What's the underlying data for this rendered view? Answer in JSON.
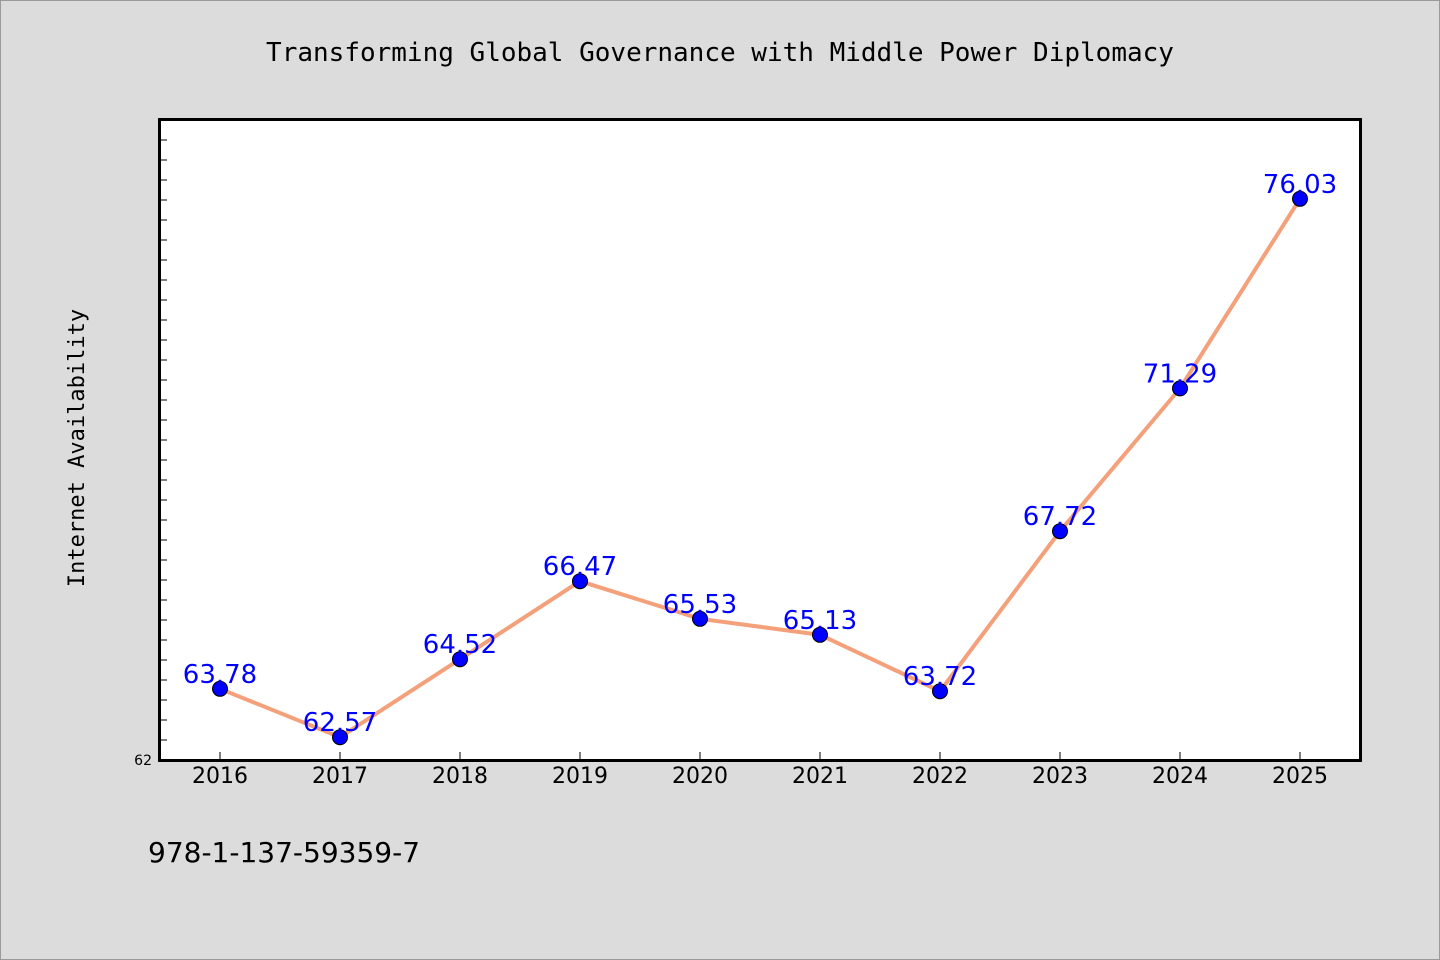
{
  "chart_data": {
    "type": "line",
    "title": "Transforming Global Governance with Middle Power Diplomacy",
    "xlabel": "",
    "ylabel": "Internet Availability",
    "categories": [
      "2016",
      "2017",
      "2018",
      "2019",
      "2020",
      "2021",
      "2022",
      "2023",
      "2024",
      "2025"
    ],
    "values": [
      63.78,
      62.57,
      64.52,
      66.47,
      65.53,
      65.13,
      63.72,
      67.72,
      71.29,
      76.03
    ],
    "data_labels": [
      "63.78",
      "62.57",
      "64.52",
      "66.47",
      "65.53",
      "65.13",
      "63.72",
      "67.72",
      "71.29",
      "76.03"
    ],
    "ylim": [
      62,
      78
    ],
    "y_tick_labels": [
      "62"
    ],
    "grid": false,
    "line_color": "#f4a07a",
    "marker_color": "#0000ff",
    "label_color": "#0000ff"
  },
  "footer": {
    "isbn": "978-1-137-59359-7"
  }
}
